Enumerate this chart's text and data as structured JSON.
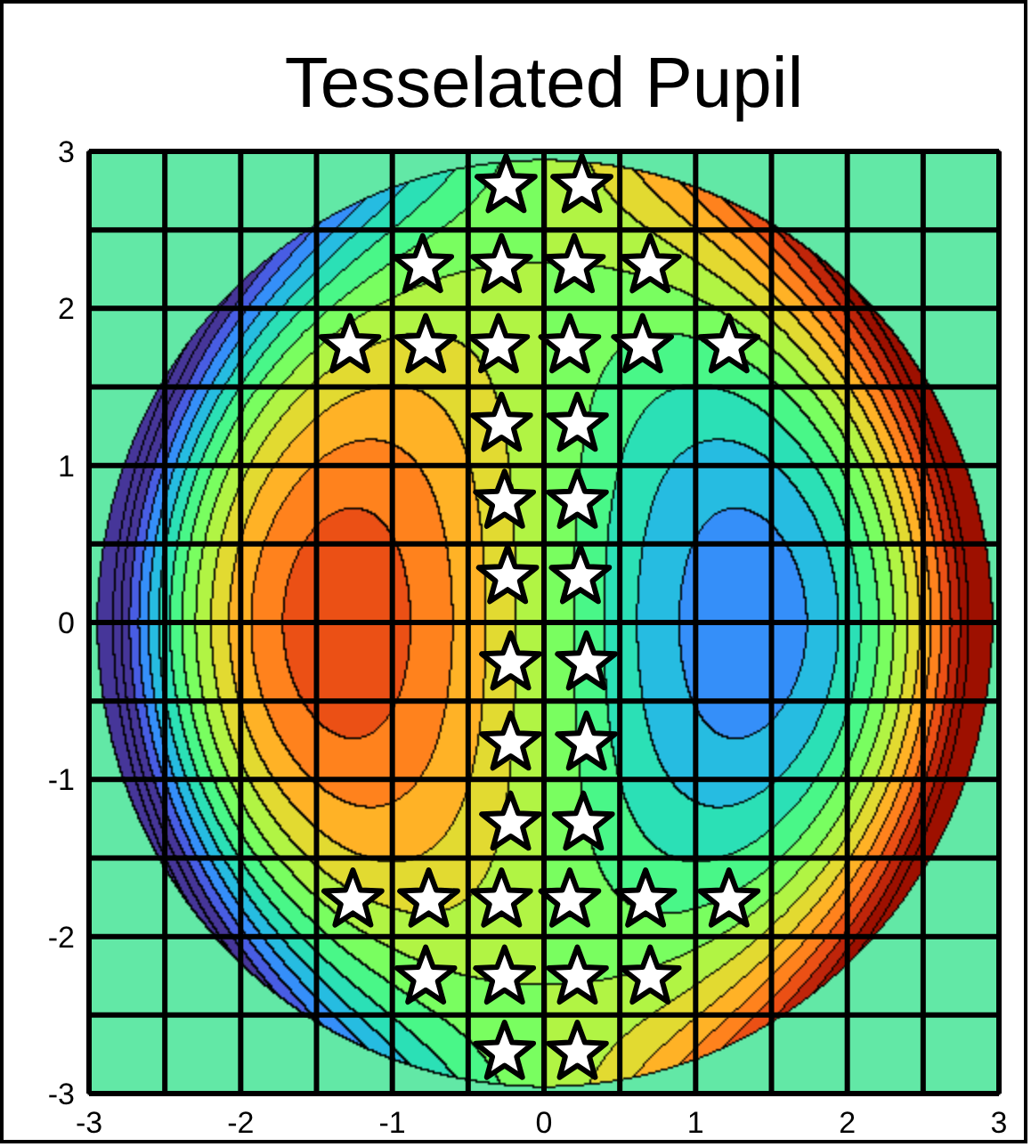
{
  "chart_data": {
    "type": "scatter",
    "title": "Tesselated Pupil",
    "xlim": [
      -3,
      3
    ],
    "ylim": [
      -3,
      3
    ],
    "xticks": [
      -3,
      {
        "value": -2.5,
        "label": null
      },
      -2,
      {
        "value": -1.5,
        "label": null
      },
      -1,
      {
        "value": -0.5,
        "label": null
      },
      0,
      {
        "value": 0.5,
        "label": null
      },
      1,
      {
        "value": 1.5,
        "label": null
      },
      2,
      {
        "value": 2.5,
        "label": null
      },
      3
    ],
    "yticks": [
      -3,
      {
        "value": -2.5,
        "label": null
      },
      -2,
      {
        "value": -1.5,
        "label": null
      },
      -1,
      {
        "value": -0.5,
        "label": null
      },
      0,
      {
        "value": 0.5,
        "label": null
      },
      1,
      {
        "value": 1.5,
        "label": null
      },
      2,
      {
        "value": 2.5,
        "label": null
      },
      3
    ],
    "grid": true,
    "marker": "star",
    "series": [
      {
        "color": "#ffffff",
        "x": [
          -0.25,
          0.25,
          -0.8,
          -0.28,
          0.2,
          0.7,
          -1.28,
          -0.78,
          -0.3,
          0.17,
          0.65,
          1.22,
          -0.28,
          0.22,
          -0.26,
          0.22,
          -0.24,
          0.24,
          -0.22,
          0.28,
          -0.22,
          0.28,
          -0.22,
          0.26,
          -1.26,
          -0.76,
          -0.28,
          0.17,
          0.67,
          1.22,
          -0.78,
          -0.26,
          0.22,
          0.7,
          -0.26,
          0.22
        ],
        "values": [
          2.78,
          2.78,
          2.27,
          2.27,
          2.27,
          2.27,
          1.76,
          1.76,
          1.76,
          1.76,
          1.76,
          1.76,
          1.26,
          1.26,
          0.77,
          0.77,
          0.29,
          0.29,
          -0.26,
          -0.26,
          -0.77,
          -0.77,
          -1.28,
          -1.28,
          -1.77,
          -1.77,
          -1.77,
          -1.77,
          -1.77,
          -1.77,
          -2.26,
          -2.26,
          -2.26,
          -2.26,
          -2.74,
          -2.74
        ]
      }
    ]
  }
}
